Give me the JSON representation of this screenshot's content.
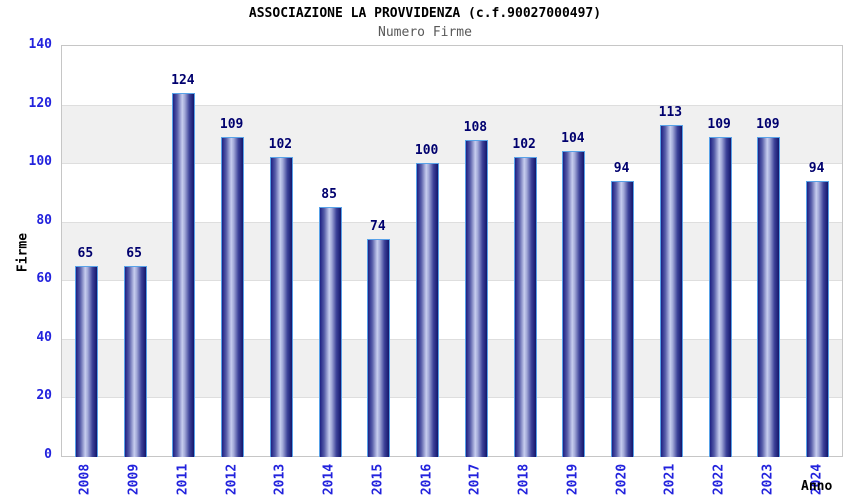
{
  "header": {
    "title": "ASSOCIAZIONE LA PROVVIDENZA (c.f.90027000497)",
    "subtitle": "Numero Firme"
  },
  "axes": {
    "y_title": "Firme",
    "x_title": "Anno",
    "y_ticks": [
      0,
      20,
      40,
      60,
      80,
      100,
      120,
      140
    ]
  },
  "chart_data": {
    "type": "bar",
    "title": "ASSOCIAZIONE LA PROVVIDENZA (c.f.90027000497)",
    "subtitle": "Numero Firme",
    "xlabel": "Anno",
    "ylabel": "Firme",
    "categories": [
      "2008",
      "2009",
      "2011",
      "2012",
      "2013",
      "2014",
      "2015",
      "2016",
      "2017",
      "2018",
      "2019",
      "2020",
      "2021",
      "2022",
      "2023",
      "2024"
    ],
    "values": [
      65,
      65,
      124,
      109,
      102,
      85,
      74,
      100,
      108,
      102,
      104,
      94,
      113,
      109,
      109,
      94
    ],
    "ylim": [
      0,
      140
    ],
    "y_tick_step": 20,
    "grid": true,
    "band_shading": true,
    "legend": "none",
    "data_labels": true
  },
  "colors": {
    "tick_label": "#2222dd",
    "value_label": "#00006e",
    "bar_border": "#58a2e8",
    "bar_dark": "#1e2083",
    "bar_light": "#c7cdee",
    "band_gray": "#f0f0f0",
    "grid_line": "#dedede",
    "plot_border": "#c6c6c6",
    "title_color": "#000000",
    "subtitle_color": "#595959"
  }
}
